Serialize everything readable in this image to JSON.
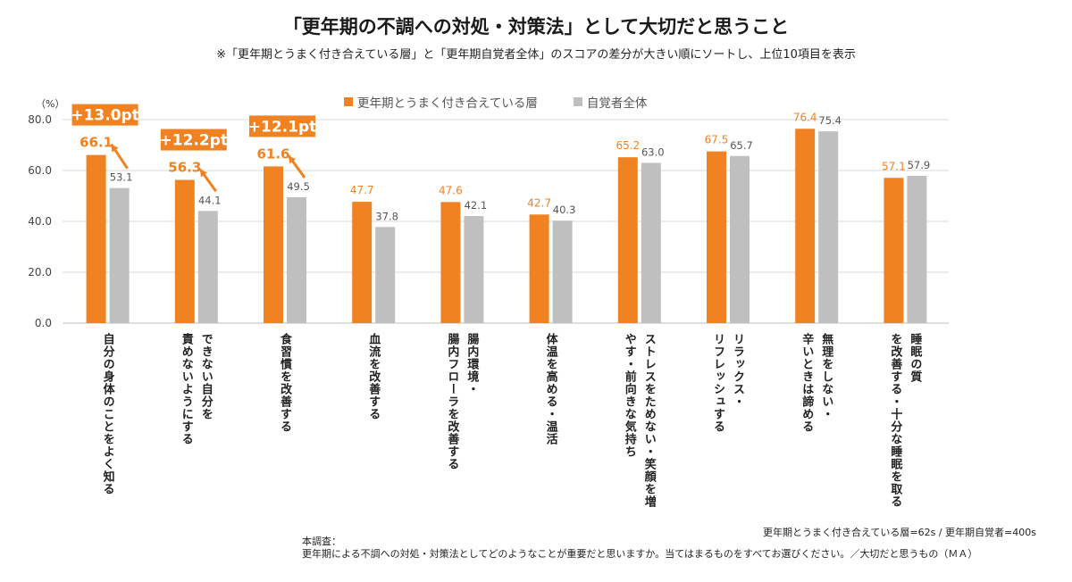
{
  "header": {
    "title": "「更年期の不調への対処・対策法」として大切だと思うこと",
    "subtitle": "※「更年期とうまく付き合えている層」と「更年期自覚者全体」のスコアの差分が大きい順にソートし、上位10項目を表示"
  },
  "axis_unit": "（%）",
  "legend": {
    "series1": "更年期とうまく付き合えている層",
    "series2": "自覚者全体"
  },
  "colors": {
    "series1": "#F08221",
    "series2": "#BFBFBF",
    "grid": "#D9D9D9"
  },
  "chart_data": {
    "type": "bar",
    "ylim": [
      0,
      80
    ],
    "yticks": [
      "0.0",
      "20.0",
      "40.0",
      "60.0",
      "80.0"
    ],
    "grid": true,
    "legend_position": "top",
    "categories": [
      [
        "自分の身体のことをよく知る"
      ],
      [
        "できない自分を",
        "責めないようにする"
      ],
      [
        "食習慣を改善する"
      ],
      [
        "血流を改善する"
      ],
      [
        "腸内環境・",
        "腸内フローラを改善する"
      ],
      [
        "体温を高める・温活"
      ],
      [
        "ストレスをためない・笑顔を増",
        "やす・前向きな気持ち"
      ],
      [
        "リラックス・",
        "リフレッシュする"
      ],
      [
        "無理をしない・",
        "辛いときは諦める"
      ],
      [
        "睡眠の質",
        "を改善する・十分な睡眠を取る"
      ]
    ],
    "series": [
      {
        "name": "更年期とうまく付き合えている層",
        "values": [
          66.1,
          56.3,
          61.6,
          47.7,
          47.6,
          42.7,
          65.2,
          67.5,
          76.4,
          57.1
        ],
        "labels": [
          "66.1",
          "56.3",
          "61.6",
          "47.7",
          "47.6",
          "42.7",
          "65.2",
          "67.5",
          "76.4",
          "57.1"
        ]
      },
      {
        "name": "自覚者全体",
        "values": [
          53.1,
          44.1,
          49.5,
          37.8,
          42.1,
          40.3,
          63.0,
          65.7,
          75.4,
          57.9
        ],
        "labels": [
          "53.1",
          "44.1",
          "49.5",
          "37.8",
          "42.1",
          "40.3",
          "63.0",
          "65.7",
          "75.4",
          "57.9"
        ]
      }
    ],
    "annotations": [
      {
        "category_index": 0,
        "text": "+13.0pt"
      },
      {
        "category_index": 1,
        "text": "+12.2pt"
      },
      {
        "category_index": 2,
        "text": "+12.1pt"
      }
    ]
  },
  "footnote": {
    "sample": "更年期とうまく付き合えている層=62s / 更年期自覚者=400s",
    "survey_title": "本調査：",
    "survey_question": "更年期による不調への対処・対策法としてどのようなことが重要だと思いますか。当てはまるものをすべてお選びください。／大切だと思うもの（ＭＡ）"
  }
}
